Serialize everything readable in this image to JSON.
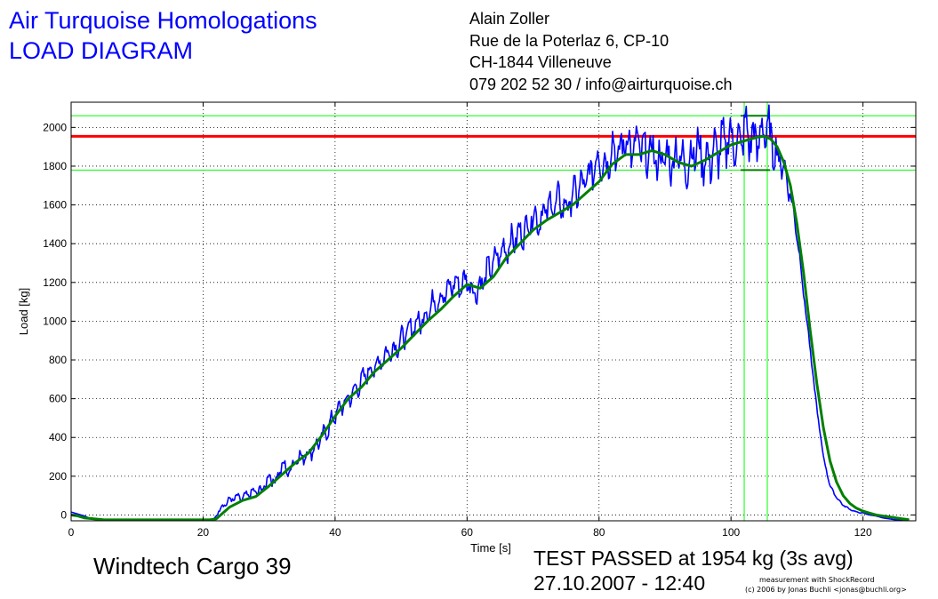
{
  "header": {
    "title": "Air Turquoise Homologations",
    "subtitle": "LOAD DIAGRAM"
  },
  "address": {
    "name": "Alain Zoller",
    "street": "Rue de la Poterlaz 6, CP-10",
    "city": "CH-1844 Villeneuve",
    "contact": "079 202 52 30 / info@airturquoise.ch"
  },
  "footer": {
    "glider": "Windtech Cargo 39",
    "result": "TEST PASSED at 1954 kg (3s avg)",
    "datetime": "27.10.2007 - 12:40",
    "credit1": "measurement with ShockRecord",
    "credit2": "(c) 2006 by Jonas Buchli <jonas@buchli.org>"
  },
  "colors": {
    "raw": "#0000ff",
    "avg": "#008000",
    "limit": "#ff0000",
    "band": "#00ff00"
  },
  "chart_data": {
    "type": "line",
    "xlabel": "Time [s]",
    "ylabel": "Load [kg]",
    "xlim": [
      0,
      128
    ],
    "ylim": [
      -30,
      2130
    ],
    "xticks": [
      0,
      20,
      40,
      60,
      80,
      100,
      120
    ],
    "yticks": [
      0,
      200,
      400,
      600,
      800,
      1000,
      1200,
      1400,
      1600,
      1800,
      2000
    ],
    "grid": true,
    "reference_lines": {
      "limit": 1954,
      "band_upper": 2060,
      "band_lower": 1780,
      "window_start": 102,
      "window_end": 105.5
    },
    "series": [
      {
        "key": "raw",
        "x": [
          0,
          1,
          2,
          3,
          5,
          10,
          15,
          20,
          21.5,
          22,
          22.5,
          23,
          24,
          25,
          26,
          27,
          28,
          29,
          30,
          31,
          32,
          33,
          34,
          35,
          36,
          37,
          38,
          39,
          40,
          41,
          42,
          43,
          44,
          45,
          46,
          47,
          48,
          49,
          50,
          51,
          52,
          53,
          54,
          55,
          56,
          57,
          58,
          59,
          60,
          61,
          62,
          63,
          64,
          65,
          66,
          67,
          68,
          69,
          70,
          71,
          72,
          73,
          74,
          75,
          76,
          77,
          78,
          79,
          80,
          81,
          82,
          83,
          84,
          85,
          86,
          87,
          88,
          89,
          90,
          91,
          92,
          93,
          94,
          95,
          96,
          97,
          98,
          99,
          100,
          101,
          102,
          103,
          104,
          105,
          106,
          107,
          108,
          109,
          110,
          111,
          112,
          113,
          114,
          115,
          116,
          117,
          118,
          119,
          120,
          121,
          122,
          123,
          124,
          125,
          126,
          127
        ],
        "y": [
          15,
          5,
          -5,
          -20,
          -25,
          -25,
          -25,
          -25,
          -25,
          -5,
          30,
          50,
          75,
          90,
          85,
          110,
          120,
          130,
          200,
          175,
          260,
          220,
          290,
          300,
          320,
          350,
          400,
          450,
          520,
          560,
          600,
          640,
          690,
          740,
          760,
          800,
          840,
          860,
          900,
          940,
          980,
          1000,
          1050,
          1100,
          1120,
          1150,
          1200,
          1180,
          1220,
          1150,
          1180,
          1250,
          1300,
          1350,
          1380,
          1420,
          1450,
          1480,
          1550,
          1520,
          1580,
          1600,
          1620,
          1580,
          1650,
          1680,
          1720,
          1780,
          1850,
          1800,
          1900,
          1850,
          1950,
          1880,
          1920,
          1850,
          1880,
          1820,
          1850,
          1820,
          1880,
          1800,
          1850,
          1900,
          1820,
          1850,
          1880,
          1920,
          1950,
          1900,
          1980,
          1950,
          1920,
          2000,
          1950,
          1850,
          1800,
          1650,
          1450,
          1150,
          850,
          550,
          300,
          150,
          90,
          50,
          30,
          15,
          10,
          0,
          -5,
          -15,
          -20,
          -25,
          -25,
          -25
        ],
        "noise": [
          0,
          0,
          0,
          0,
          0,
          0,
          0,
          0,
          0,
          0,
          20,
          20,
          25,
          25,
          25,
          30,
          30,
          35,
          40,
          40,
          40,
          45,
          45,
          45,
          50,
          50,
          50,
          55,
          55,
          55,
          60,
          60,
          60,
          60,
          65,
          65,
          65,
          65,
          70,
          70,
          70,
          75,
          75,
          75,
          75,
          80,
          80,
          80,
          80,
          85,
          85,
          85,
          85,
          90,
          90,
          90,
          95,
          95,
          100,
          100,
          100,
          100,
          100,
          105,
          105,
          110,
          110,
          115,
          120,
          120,
          130,
          130,
          135,
          135,
          140,
          140,
          140,
          140,
          140,
          140,
          140,
          140,
          140,
          145,
          145,
          150,
          150,
          155,
          160,
          160,
          160,
          160,
          160,
          160,
          150,
          120,
          80,
          60,
          40,
          30,
          20,
          15,
          10,
          8,
          6,
          5,
          4,
          3,
          2,
          0,
          0,
          0,
          0,
          0,
          0,
          0
        ]
      },
      {
        "key": "avg",
        "x": [
          0,
          1,
          2,
          5,
          10,
          15,
          20,
          21,
          22,
          23,
          24,
          26,
          28,
          30,
          32,
          34,
          36,
          38,
          40,
          42,
          44,
          46,
          48,
          50,
          52,
          54,
          56,
          58,
          60,
          62,
          64,
          66,
          68,
          70,
          72,
          74,
          76,
          78,
          80,
          82,
          84,
          86,
          88,
          90,
          92,
          94,
          96,
          98,
          100,
          102,
          104,
          105,
          106,
          107,
          108,
          109,
          110,
          111,
          112,
          113,
          114,
          115,
          116,
          117,
          118,
          119,
          120,
          121,
          122,
          124,
          126,
          127
        ],
        "y": [
          0,
          -5,
          -15,
          -25,
          -25,
          -25,
          -25,
          -25,
          -20,
          10,
          40,
          75,
          95,
          150,
          210,
          270,
          320,
          410,
          510,
          600,
          660,
          740,
          800,
          860,
          930,
          1000,
          1060,
          1130,
          1190,
          1170,
          1230,
          1330,
          1400,
          1470,
          1520,
          1560,
          1600,
          1660,
          1720,
          1810,
          1860,
          1860,
          1880,
          1860,
          1820,
          1800,
          1830,
          1870,
          1910,
          1930,
          1950,
          1954,
          1940,
          1900,
          1820,
          1700,
          1500,
          1250,
          950,
          680,
          450,
          280,
          170,
          100,
          60,
          35,
          20,
          10,
          0,
          -10,
          -20,
          -25
        ]
      }
    ]
  }
}
